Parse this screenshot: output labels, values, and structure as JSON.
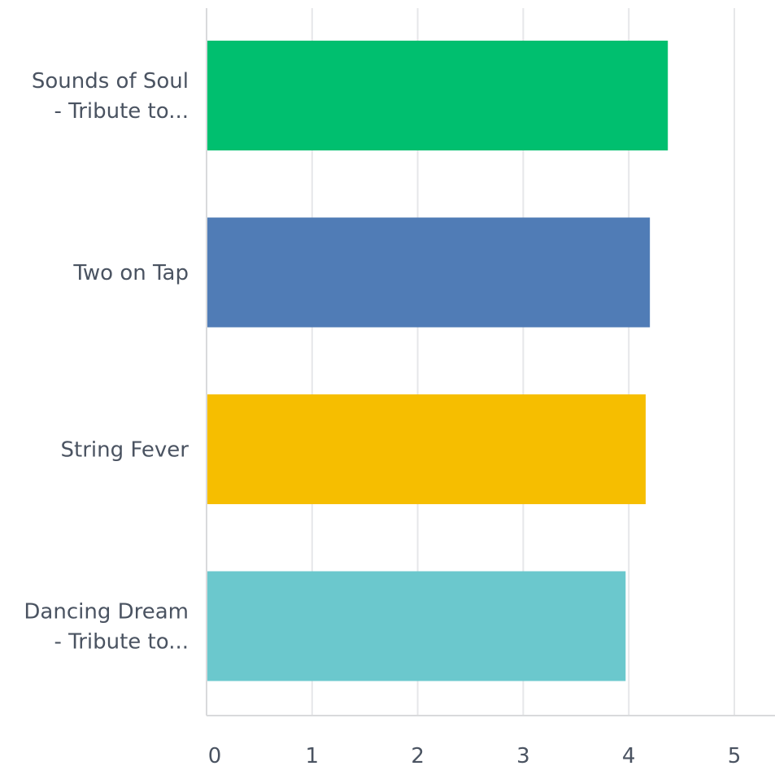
{
  "chart_data": {
    "type": "bar",
    "orientation": "horizontal",
    "categories": [
      [
        "Sounds of Soul",
        "- Tribute to..."
      ],
      [
        "Two on Tap"
      ],
      [
        "String Fever"
      ],
      [
        "Dancing Dream",
        "- Tribute to..."
      ]
    ],
    "values": [
      4.37,
      4.2,
      4.16,
      3.97
    ],
    "colors": [
      "#00bf6f",
      "#507cb6",
      "#f6be00",
      "#6bc8cd"
    ],
    "xlim": [
      0,
      5
    ],
    "xticks": [
      "0",
      "1",
      "2",
      "3",
      "4",
      "5"
    ],
    "grid": true,
    "title": "",
    "xlabel": "",
    "ylabel": ""
  }
}
